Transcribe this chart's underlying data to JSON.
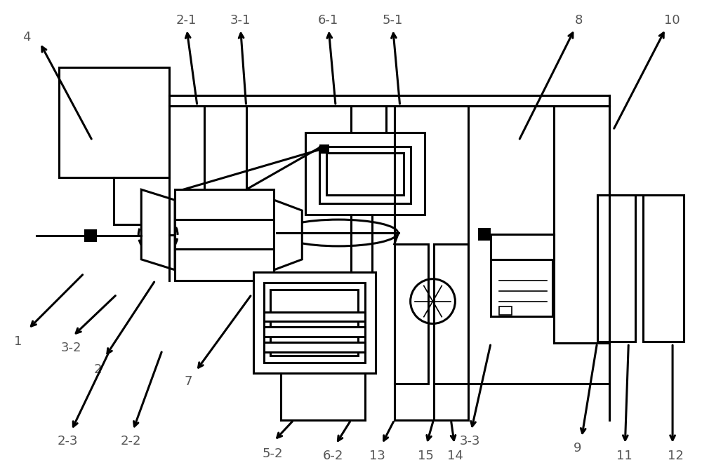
{
  "bg_color": "#ffffff",
  "line_color": "#000000",
  "label_color": "#555555",
  "figsize": [
    10.0,
    6.63
  ],
  "dpi": 100,
  "lw": 2.2,
  "lw_thin": 1.2,
  "fs": 13
}
